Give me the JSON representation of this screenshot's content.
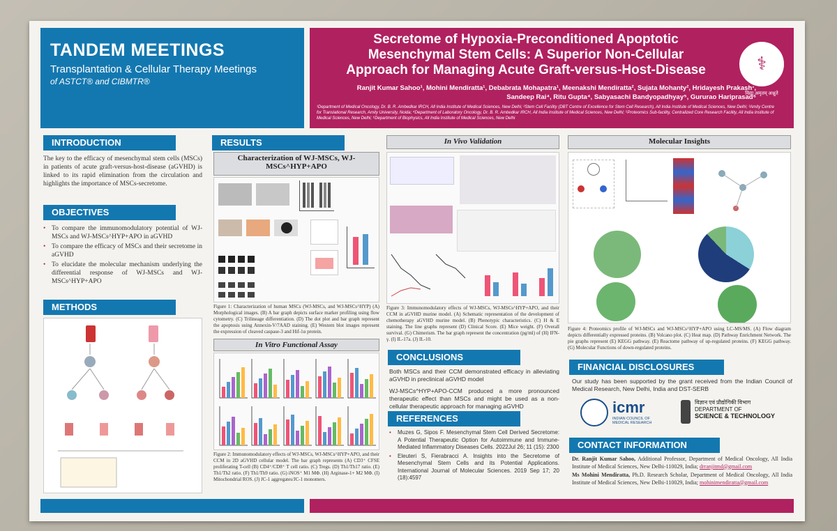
{
  "header": {
    "meeting_title": "TANDEM MEETINGS",
    "meeting_sub": "Transplantation & Cellular Therapy Meetings",
    "meeting_of": "of ASTCT® and CIBMTR®",
    "title_line1": "Secretome of Hypoxia-Preconditioned Apoptotic",
    "title_line2": "Mesenchymal Stem Cells: A Superior Non-Cellular",
    "title_line3": "Approach for Managing Acute Graft-versus-Host-Disease",
    "authors_line1": "Ranjit Kumar Sahoo¹, Mohini Mendiratta¹, Debabrata Mohapatra¹, Meenakshi Mendiratta², Sujata Mohanty², Hridayesh Prakash³,",
    "authors_line2": "Sandeep Rai⁴, Ritu Gupta⁴, Sabyasachi Bandyopadhyay⁵, Gururao Hariprasad⁶",
    "affiliations": "¹Department of Medical Oncology, Dr. B. R. Ambedkar IRCH, All India Institute of Medical Sciences, New Delhi; ²Stem Cell Facility (DBT Centre of Excellence for Stem Cell Research), All India Institute of Medical Sciences, New Delhi; ³Amity Centre for Translational Research, Amity University, Noida; ⁴Department of Laboratory Oncology, Dr. B. R. Ambedkar IRCH, All India Institute of Medical Sciences, New Delhi; ⁵Proteomics Sub-facility, Centralized Core Research Facility, All India Institute of Medical Sciences, New Delhi; ⁶Department of Biophysics, All India Institute of Medical Sciences, New Delhi",
    "logo_caption": "विद्या अमृतम् अश्नुते"
  },
  "introduction": {
    "heading": "INTRODUCTION",
    "text": "The key to the efficacy of mesenchymal stem cells (MSCs) in patients of acute graft-versus-host-disease (aGVHD) is linked to its rapid elimination from the circulation and highlights the importance of MSCs-secretome."
  },
  "objectives": {
    "heading": "OBJECTIVES",
    "items": [
      "To compare the immunomodulatory potential of WJ-MSCs and WJ-MSCs^HYP+APO in aGVHD",
      "To compare the efficacy of MSCs and their secretome in aGVHD",
      "To elucidate the molecular mechanism underlying the differential response of WJ-MSCs and WJ-MSCs^HYP+APO"
    ]
  },
  "methods": {
    "heading": "METHODS"
  },
  "results": {
    "heading": "RESULTS",
    "char_title": "Characterization of WJ-MSCs, WJ-MSCs^HYP+APO",
    "fig1_caption": "Figure 1: Characterization of human MSCs (WJ-MSCs, and WJ-MSCs^HYP) (A) Morphological images. (B) A bar graph depicts surface marker profiling using flow cytometry. (C) Trilineage differentiation. (D) The dot plot and bar graph represent the apoptosis using Annexin-V/7AAD staining. (E) Western blot images represent the expression of cleaved caspase-3 and Hif-1α protein.",
    "invitro_title": "In Vitro Functional Assay",
    "fig2_caption": "Figure 2: Immunomodulatory effects of WJ-MSCs, WJ-MSCs^HYP+APO, and their CCM in 2D aGVHD cellular model. The bar graph represents (A) CD3⁺ CFSE proliferating T-cell (B) CD4⁺/CD8⁺ T cell ratio. (C) Tregs. (D) Th1/Th17 ratio. (E) Th1/Th2 ratio. (F) Th1/Th9 ratio. (G) iNOS⁺ M1 MΦ. (H) Arginase-1+ M2 MΦ. (I) Mitochondrial ROS. (J) JC-1 aggregates/JC-1 monomers."
  },
  "invivo": {
    "title": "In Vivo Validation",
    "fig3_caption": "Figure 3: Immunomodulatory effects of WJ-MSCs, WJ-MSCs^HYP+APO, and their CCM in aGVHD murine model. (A) Schematic representation of the development of chemotherapy aGVHD murine model. (B) Phenotypic characteristics. (C) H & E staining. The line graphs represent (D) Clinical Score. (E) Mice weight. (F) Overall survival. (G) Chimerism. The bar graph represent the concentration (pg/ml) of (H) IFN-γ. (I) IL-17a. (J) IL-10."
  },
  "conclusions": {
    "heading": "CONCLUSIONS",
    "p1": "Both MSCs and their CCM demonstrated efficacy in alleviating aGVHD in preclinical aGVHD model",
    "p2": "WJ-MSCs^HYP+APO-CCM produced a more pronounced therapeutic effect than MSCs and might be used as a non-cellular therapeutic approach for managing aGVHD"
  },
  "references": {
    "heading": "REFERENCES",
    "items": [
      "Muzes G, Sipos F. Mesenchymal Stem Cell Derived Secretome: A Potential Therapeutic Option for Autoimmune and Immune-Mediated Inflammatory Diseases Cells. 2022Jul 26; 11 (15): 2300",
      "Eleuteri S, Fierabracci A. Insights into the Secretome of Mesenchymal Stem Cells and its Potential Applications. International Journal of Molecular Sciences. 2019 Sep 17; 20 (18):4597"
    ]
  },
  "molecular": {
    "title": "Molecular Insights",
    "fig4_caption": "Figure 4: Proteomics profile of WJ-MSCs and WJ-MSCs^HYP+APO using LC-MS/MS. (A) Flow diagram depicts differentially expressed proteins. (B) Volcano plot. (C) Heat map. (D) Pathway Enrichment Network. The pie graphs represent (E) KEGG pathway. (E) Reactome pathway of up-regulated proteins. (F) KEGG pathway. (G) Molecular Functions of down-regulated proteins."
  },
  "financial": {
    "heading": "FINANCIAL DISCLOSURES",
    "text": "Our study has been supported by the grant received from the Indian Council of Medical Research, New Delhi, India and DST-SERB",
    "icmr_abbr": "icmr",
    "icmr_name": "INDIAN COUNCIL OF MEDICAL RESEARCH",
    "dst_hindi": "विज्ञान एवं प्रौद्योगिकी विभाग",
    "dst_line1": "DEPARTMENT OF",
    "dst_line2": "SCIENCE & TECHNOLOGY"
  },
  "contact": {
    "heading": "CONTACT INFORMATION",
    "c1_name": "Dr. Ranjit Kumar Sahoo,",
    "c1_text": " Additional Professor, Department of Medical Oncology, All India Institute of Medical Sciences, New Delhi-110029, India; ",
    "c1_email": "drranjitmd@gmail.com",
    "c2_name": "Ms Mohini Mendiratta,",
    "c2_text": " Ph.D. Research Scholar, Department of Medical Oncology, All India Institute of Medical Sciences, New Delhi-110029, India; ",
    "c2_email": "mohinimendiratta@gmail.com"
  },
  "colors": {
    "blue": "#1478b0",
    "pink": "#b0215f"
  }
}
